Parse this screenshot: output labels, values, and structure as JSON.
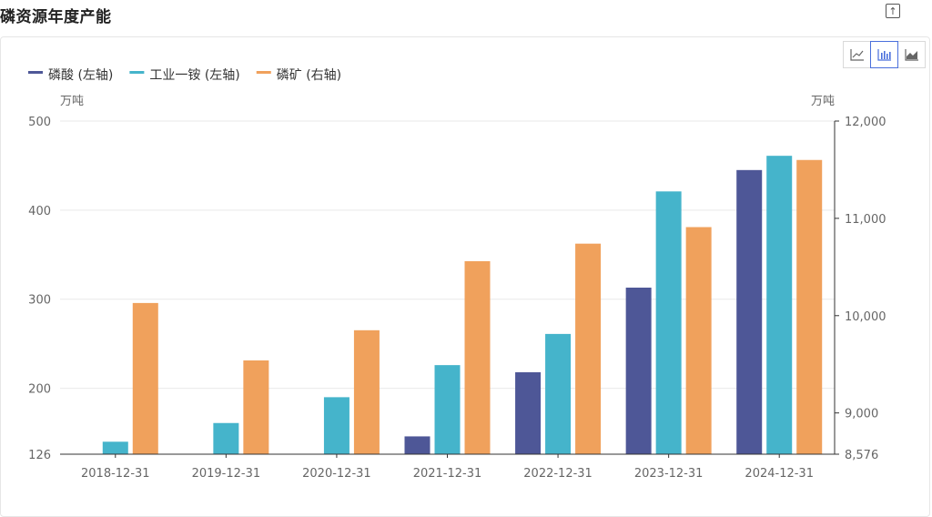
{
  "header": {
    "title": "磷资源年度产能"
  },
  "toolbar": {
    "buttons": [
      {
        "name": "line-chart-button",
        "icon": "line-chart-icon",
        "active": false
      },
      {
        "name": "bar-chart-button",
        "icon": "bar-chart-icon",
        "active": true
      },
      {
        "name": "area-chart-button",
        "icon": "area-chart-icon",
        "active": false
      }
    ],
    "export_icon": "export-icon"
  },
  "colors": {
    "accent": "#4a6fdc"
  },
  "chart_data": {
    "type": "bar",
    "categories": [
      "2018-12-31",
      "2019-12-31",
      "2020-12-31",
      "2021-12-31",
      "2022-12-31",
      "2023-12-31",
      "2024-12-31"
    ],
    "series": [
      {
        "name": "磷酸 (左轴)",
        "axis": "left",
        "color": "#4e5797",
        "values": [
          null,
          null,
          null,
          146,
          218,
          313,
          445
        ]
      },
      {
        "name": "工业一铵 (左轴)",
        "axis": "left",
        "color": "#45b4cb",
        "values": [
          140,
          161,
          190,
          226,
          261,
          421,
          461
        ]
      },
      {
        "name": "磷矿 (右轴)",
        "axis": "right",
        "color": "#f0a15c",
        "values": [
          10130,
          9540,
          9850,
          10560,
          10740,
          10910,
          11600
        ]
      }
    ],
    "y_left": {
      "unit": "万吨",
      "min": 126,
      "max": 500,
      "ticks": [
        126,
        200,
        300,
        400,
        500
      ],
      "tick_labels": [
        "126",
        "200",
        "300",
        "400",
        "500"
      ]
    },
    "y_right": {
      "unit": "万吨",
      "min": 8576,
      "max": 12000,
      "ticks": [
        8576,
        9000,
        10000,
        11000,
        12000
      ],
      "tick_labels": [
        "8,576",
        "9,000",
        "10,000",
        "11,000",
        "12,000"
      ]
    },
    "grid": true,
    "legend": "top-left"
  }
}
